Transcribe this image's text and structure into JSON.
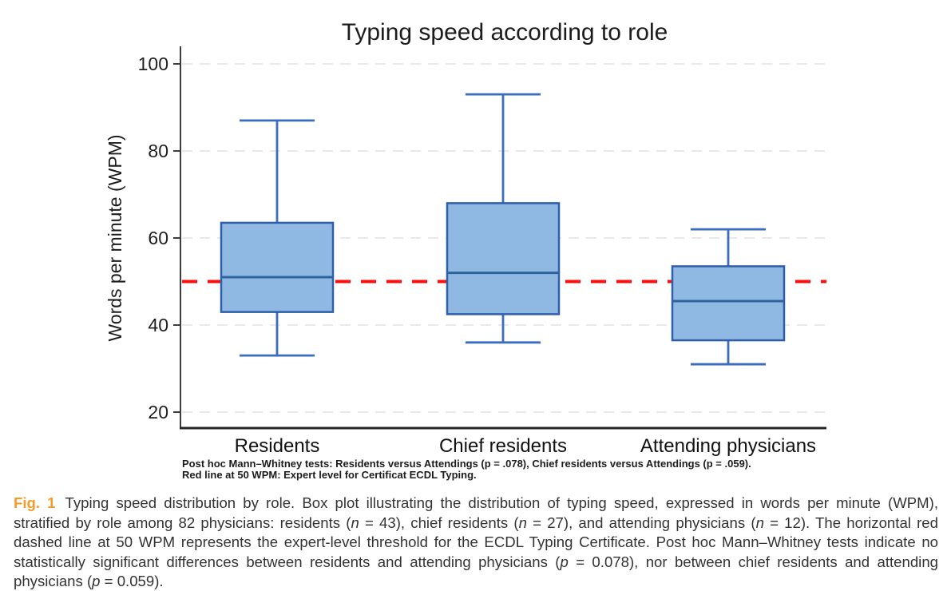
{
  "chart_data": {
    "type": "boxplot",
    "title": "Typing speed according to role",
    "ylabel": "Words per minute (WPM)",
    "xlabel": "",
    "yticks": [
      20,
      40,
      60,
      80,
      100
    ],
    "ylim": [
      16,
      104
    ],
    "grid": "horizontal-dashed",
    "categories": [
      "Residents",
      "Chief residents",
      "Attending physicians"
    ],
    "series": [
      {
        "name": "Residents",
        "n": 43,
        "whisker_low": 33,
        "q1": 43,
        "median": 51,
        "q3": 63.5,
        "whisker_high": 87
      },
      {
        "name": "Chief residents",
        "n": 27,
        "whisker_low": 36,
        "q1": 42.5,
        "median": 52,
        "q3": 68,
        "whisker_high": 93
      },
      {
        "name": "Attending physicians",
        "n": 12,
        "whisker_low": 31,
        "q1": 36.5,
        "median": 45.5,
        "q3": 53.5,
        "whisker_high": 62
      }
    ],
    "reference_line": {
      "value": 50,
      "style": "dashed"
    }
  },
  "notes": {
    "line1": "Post hoc Mann–Whitney tests: Residents versus Attendings (p = .078), Chief residents versus Attendings (p = .059).",
    "line2": "Red line at 50 WPM: Expert level for Certificat ECDL Typing."
  },
  "caption": {
    "fig_label": "Fig. 1",
    "segments": [
      {
        "text": "Typing speed distribution by role. Box plot illustrating the distribution of typing speed, expressed in words per minute (WPM), stratified by role among 82 physicians: residents (",
        "italic": false
      },
      {
        "text": "n",
        "italic": true
      },
      {
        "text": " = 43), chief residents (",
        "italic": false
      },
      {
        "text": "n",
        "italic": true
      },
      {
        "text": " = 27), and attending physicians (",
        "italic": false
      },
      {
        "text": "n",
        "italic": true
      },
      {
        "text": " = 12). The horizontal red dashed line at 50 WPM represents the expert-level threshold for the ECDL Typing Certificate. Post hoc Mann–Whitney tests indicate no statistically significant differences between residents and attending physicians (",
        "italic": false
      },
      {
        "text": "p",
        "italic": true
      },
      {
        "text": " = 0.078), nor between chief residents and attending physicians (",
        "italic": false
      },
      {
        "text": "p",
        "italic": true
      },
      {
        "text": " = 0.059).",
        "italic": false
      }
    ]
  },
  "colors": {
    "box_fill": "#8FB9E2",
    "box_border": "#2E5FA8",
    "whisker": "#3B6DBF",
    "median": "#2F639F",
    "reference_line": "#FA0F0C",
    "grid": "#E2E2E2",
    "axis": "#3C3C3C",
    "bottom_axis": "#242424",
    "tick_text": "#1F1F1F",
    "fig_label": "#F59B2C"
  }
}
